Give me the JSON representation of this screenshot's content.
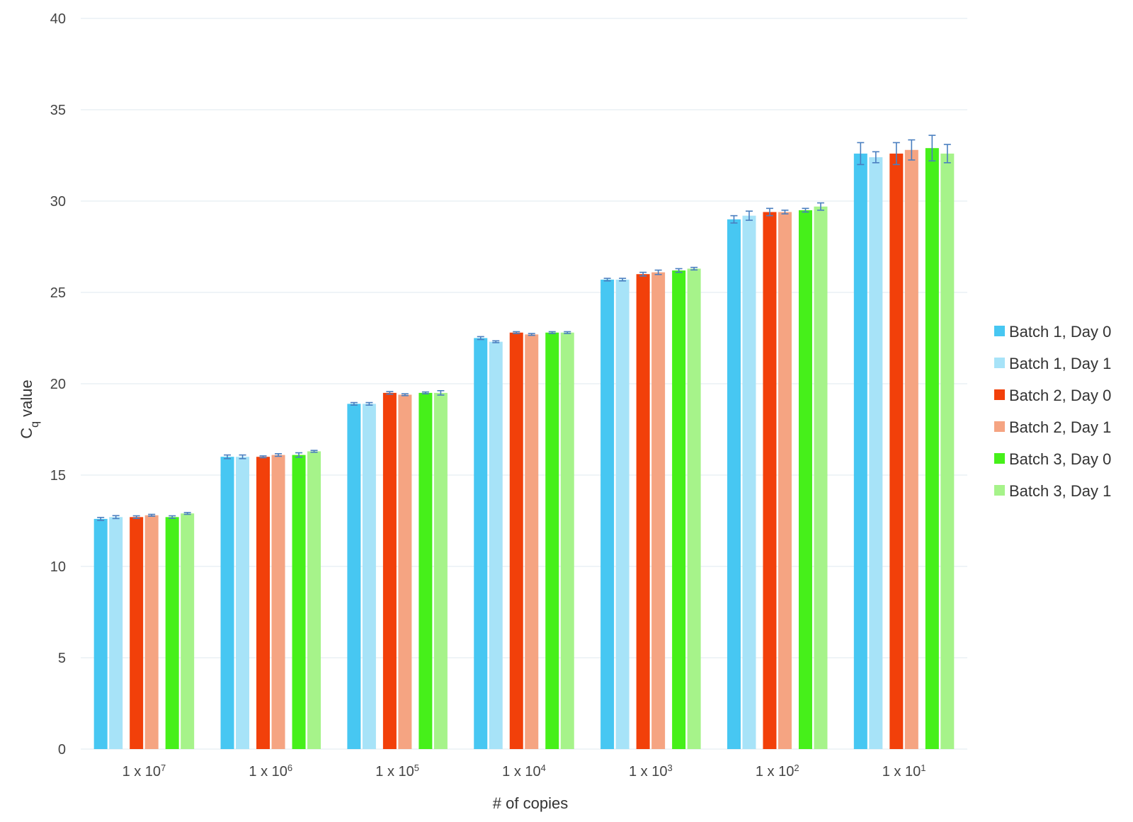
{
  "chart_data": {
    "type": "bar",
    "title": "",
    "xlabel": "# of copies",
    "ylabel": "C",
    "ylabel_sub": "q",
    "ylabel_suffix": " value",
    "ylim": [
      0,
      40
    ],
    "yticks": [
      0,
      5,
      10,
      15,
      20,
      25,
      30,
      35,
      40
    ],
    "grid": true,
    "legend_position": "right",
    "categories": [
      {
        "base": "1 x 10",
        "exp": "7"
      },
      {
        "base": "1 x 10",
        "exp": "6"
      },
      {
        "base": "1 x 10",
        "exp": "5"
      },
      {
        "base": "1 x 10",
        "exp": "4"
      },
      {
        "base": "1 x 10",
        "exp": "3"
      },
      {
        "base": "1 x 10",
        "exp": "2"
      },
      {
        "base": "1 x 10",
        "exp": "1"
      }
    ],
    "series": [
      {
        "name": "Batch 1, Day 0",
        "color": "#47c7f2",
        "values": [
          12.6,
          16.0,
          18.9,
          22.5,
          25.7,
          29.0,
          32.6
        ],
        "errors": [
          0.08,
          0.1,
          0.07,
          0.08,
          0.07,
          0.2,
          0.6
        ]
      },
      {
        "name": "Batch 1, Day 1",
        "color": "#a7e3f8",
        "values": [
          12.7,
          16.0,
          18.9,
          22.3,
          25.7,
          29.2,
          32.4
        ],
        "errors": [
          0.08,
          0.1,
          0.07,
          0.05,
          0.07,
          0.25,
          0.3
        ]
      },
      {
        "name": "Batch 2, Day 0",
        "color": "#f2400a",
        "values": [
          12.7,
          16.0,
          19.5,
          22.8,
          26.0,
          29.4,
          32.6
        ],
        "errors": [
          0.07,
          0.05,
          0.07,
          0.05,
          0.1,
          0.2,
          0.6
        ]
      },
      {
        "name": "Batch 2, Day 1",
        "color": "#f5a482",
        "values": [
          12.8,
          16.1,
          19.4,
          22.7,
          26.1,
          29.4,
          32.8
        ],
        "errors": [
          0.05,
          0.07,
          0.05,
          0.05,
          0.12,
          0.1,
          0.55
        ]
      },
      {
        "name": "Batch 3, Day 0",
        "color": "#46f01a",
        "values": [
          12.7,
          16.1,
          19.5,
          22.8,
          26.2,
          29.5,
          32.9
        ],
        "errors": [
          0.07,
          0.12,
          0.05,
          0.05,
          0.1,
          0.1,
          0.7
        ]
      },
      {
        "name": "Batch 3, Day 1",
        "color": "#a6f38a",
        "values": [
          12.9,
          16.3,
          19.5,
          22.8,
          26.3,
          29.7,
          32.6
        ],
        "errors": [
          0.05,
          0.05,
          0.12,
          0.05,
          0.07,
          0.2,
          0.5
        ]
      }
    ]
  }
}
